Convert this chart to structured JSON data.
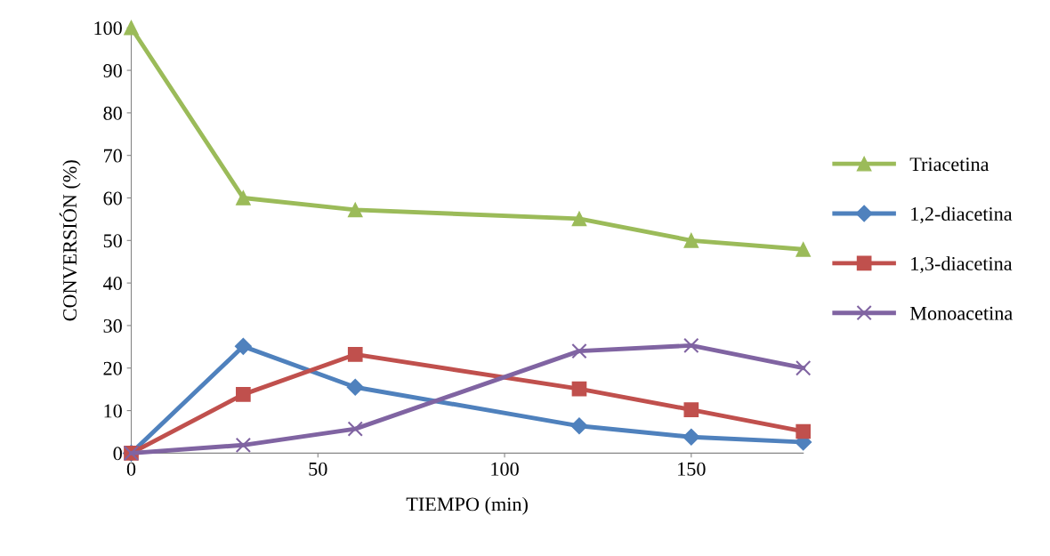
{
  "chart_data": {
    "type": "line",
    "xlabel": "TIEMPO (min)",
    "ylabel": "CONVERSIÓN (%)",
    "x": [
      0,
      30,
      60,
      120,
      150,
      180
    ],
    "series": [
      {
        "name": "Triacetina",
        "color": "#9bbb59",
        "marker": "triangle",
        "values": [
          100,
          60,
          57.2,
          55.1,
          50,
          47.9
        ]
      },
      {
        "name": "1,2-diacetina",
        "color": "#4f81bd",
        "marker": "diamond",
        "values": [
          0,
          25.1,
          15.5,
          6.4,
          3.8,
          2.6
        ]
      },
      {
        "name": "1,3-diacetina",
        "color": "#c0504d",
        "marker": "square",
        "values": [
          0,
          13.8,
          23.2,
          15.1,
          10.2,
          5.1
        ]
      },
      {
        "name": "Monoacetina",
        "color": "#8064a2",
        "marker": "cross",
        "values": [
          0,
          1.9,
          5.7,
          24,
          25.3,
          20
        ]
      }
    ],
    "xlim": [
      0,
      180
    ],
    "xticks": [
      0,
      50,
      100,
      150
    ],
    "ylim": [
      0,
      100
    ],
    "yticks": [
      0,
      10,
      20,
      30,
      40,
      50,
      60,
      70,
      80,
      90,
      100
    ],
    "grid": false,
    "legend": "right",
    "line_style": "solid"
  }
}
